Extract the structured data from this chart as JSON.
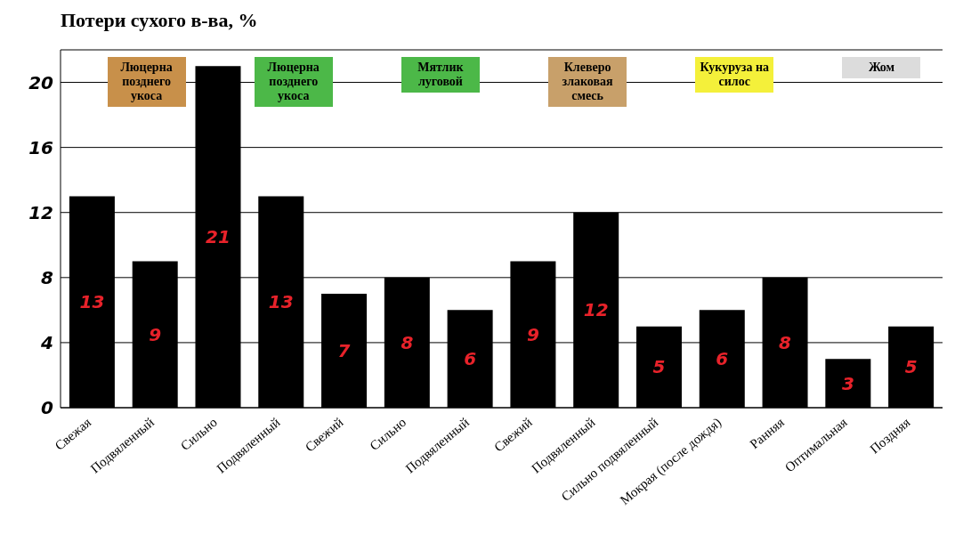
{
  "chart_data": {
    "type": "bar",
    "title": "Потери сухого в-ва, %",
    "categories": [
      "Свежая",
      "Подвяленный",
      "Сильно",
      "Подвяленный",
      "Свежий",
      "Сильно",
      "Подвяленный",
      "Свежий",
      "Подвяленный",
      "Сильно подвяленный",
      "Мокрая (после дождя)",
      "Ранняя",
      "Оптимальная",
      "Поздняя"
    ],
    "values": [
      13,
      9,
      21,
      13,
      7,
      8,
      6,
      9,
      12,
      5,
      6,
      8,
      3,
      5
    ],
    "color": "#000000",
    "ylim": [
      0,
      22
    ],
    "yticks": [
      0,
      4,
      8,
      12,
      16,
      20
    ],
    "grid": "y",
    "data_labels": true,
    "annotations": [
      "Люцерна позднего укоса",
      "Люцерна позднего укоса",
      "Мятлик луговой",
      "Клеверо злаковая смесь",
      "Кукуруза на силос",
      "Жом"
    ]
  }
}
